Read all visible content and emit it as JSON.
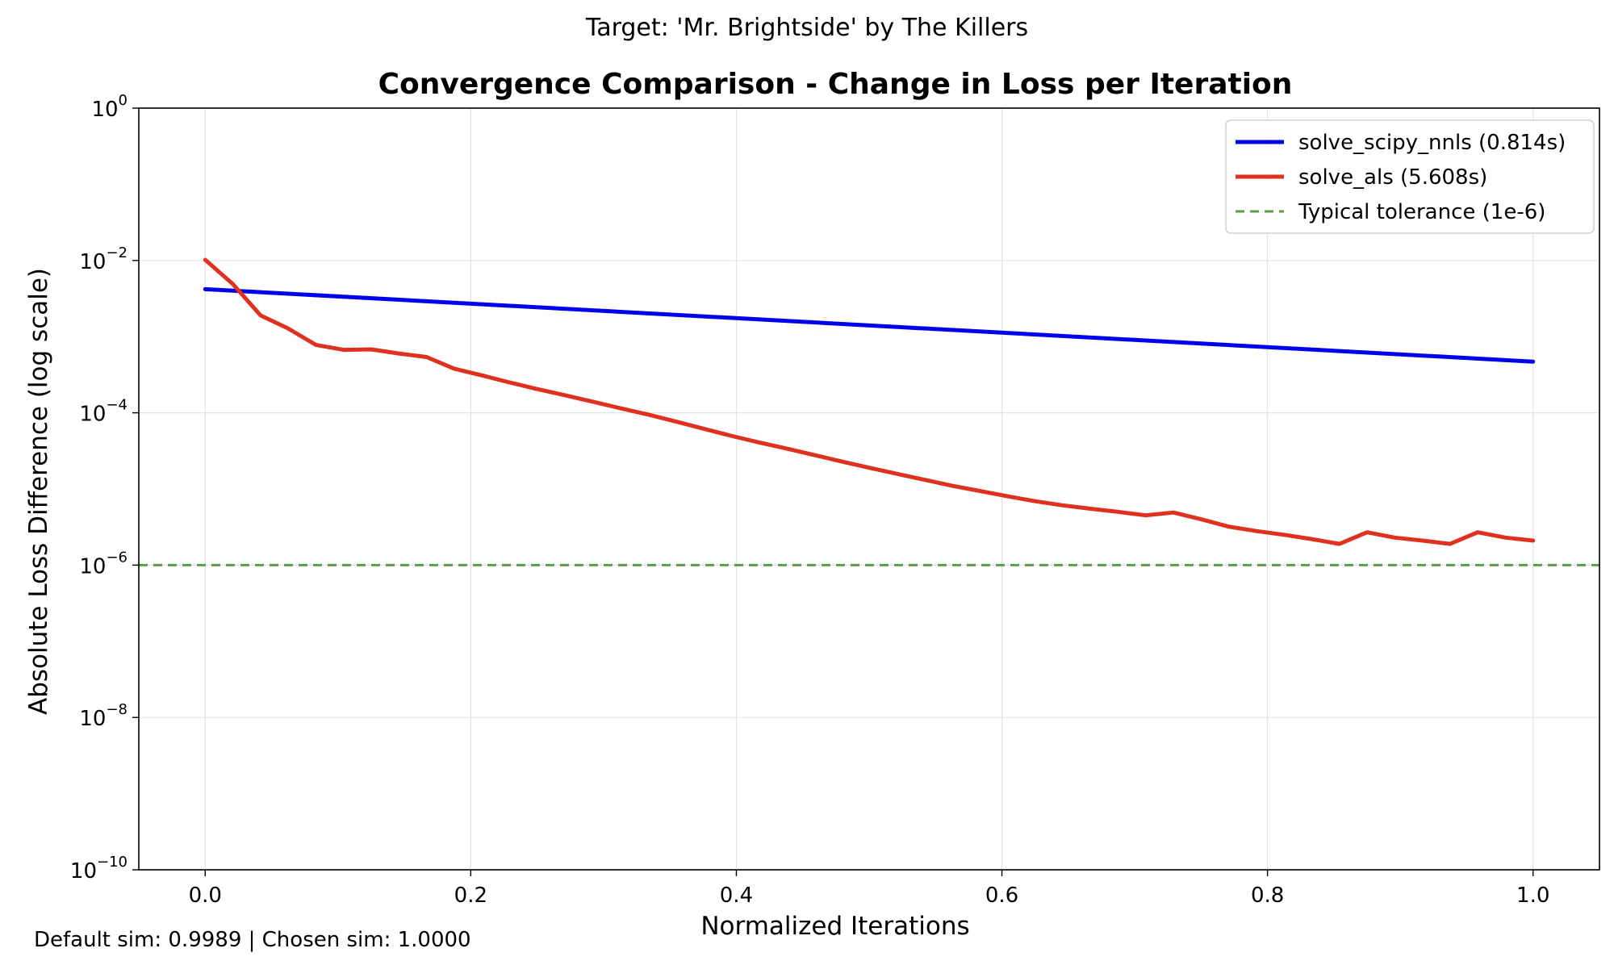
{
  "page": {
    "suptitle": "Target: 'Mr. Brightside' by The Killers",
    "footer": "Default sim: 0.9989 | Chosen sim: 1.0000"
  },
  "chart_data": {
    "type": "line",
    "title": "Convergence Comparison - Change in Loss per Iteration",
    "xlabel": "Normalized Iterations",
    "ylabel": "Absolute Loss Difference (log scale)",
    "xlim": [
      -0.05,
      1.05
    ],
    "ylim": [
      1e-10,
      1
    ],
    "yscale": "log",
    "grid": true,
    "legend_position": "top-right",
    "xticks": [
      {
        "value": 0.0,
        "label": "0.0"
      },
      {
        "value": 0.2,
        "label": "0.2"
      },
      {
        "value": 0.4,
        "label": "0.4"
      },
      {
        "value": 0.6,
        "label": "0.6"
      },
      {
        "value": 0.8,
        "label": "0.8"
      },
      {
        "value": 1.0,
        "label": "1.0"
      }
    ],
    "yticks": [
      {
        "value": 1,
        "base": "10",
        "exp": "0"
      },
      {
        "value": 0.01,
        "base": "10",
        "exp": "−2"
      },
      {
        "value": 0.0001,
        "base": "10",
        "exp": "−4"
      },
      {
        "value": 1e-06,
        "base": "10",
        "exp": "−6"
      },
      {
        "value": 1e-08,
        "base": "10",
        "exp": "−8"
      },
      {
        "value": 1e-10,
        "base": "10",
        "exp": "−10"
      }
    ],
    "series": [
      {
        "name": "solve_scipy_nnls (0.814s)",
        "color": "#0000ee",
        "style": "solid",
        "x": [
          0.0,
          1.0
        ],
        "y": [
          0.0042,
          0.00047
        ]
      },
      {
        "name": "solve_als (5.608s)",
        "color": "#e03020",
        "style": "solid",
        "x": [
          0.0,
          0.0208,
          0.0417,
          0.0625,
          0.0833,
          0.1042,
          0.125,
          0.1458,
          0.1667,
          0.1875,
          0.2083,
          0.2292,
          0.25,
          0.2708,
          0.2917,
          0.3125,
          0.3333,
          0.3542,
          0.375,
          0.3958,
          0.4167,
          0.4375,
          0.4583,
          0.4792,
          0.5,
          0.5208,
          0.5417,
          0.5625,
          0.5833,
          0.6042,
          0.625,
          0.6458,
          0.6667,
          0.6875,
          0.7083,
          0.7292,
          0.75,
          0.7708,
          0.7917,
          0.8125,
          0.8333,
          0.8542,
          0.875,
          0.8958,
          0.9167,
          0.9375,
          0.9583,
          0.9792,
          1.0
        ],
        "y": [
          0.0102,
          0.0049,
          0.0019,
          0.00128,
          0.00078,
          0.00067,
          0.00068,
          0.0006,
          0.00054,
          0.00038,
          0.00031,
          0.00025,
          0.000205,
          0.00017,
          0.00014,
          0.000115,
          9.5e-05,
          7.7e-05,
          6.2e-05,
          5e-05,
          4.1e-05,
          3.4e-05,
          2.8e-05,
          2.3e-05,
          1.9e-05,
          1.58e-05,
          1.32e-05,
          1.1e-05,
          9.4e-06,
          8e-06,
          6.9e-06,
          6.1e-06,
          5.5e-06,
          5e-06,
          4.5e-06,
          4.9e-06,
          4e-06,
          3.2e-06,
          2.8e-06,
          2.5e-06,
          2.2e-06,
          1.9e-06,
          2.7e-06,
          2.3e-06,
          2.1e-06,
          1.9e-06,
          2.7e-06,
          2.3e-06,
          2.1e-06
        ]
      },
      {
        "name": "Typical tolerance (1e-6)",
        "color": "#5a9e46",
        "style": "dashed",
        "x": [
          -0.05,
          1.05
        ],
        "y": [
          1e-06,
          1e-06
        ]
      }
    ]
  }
}
